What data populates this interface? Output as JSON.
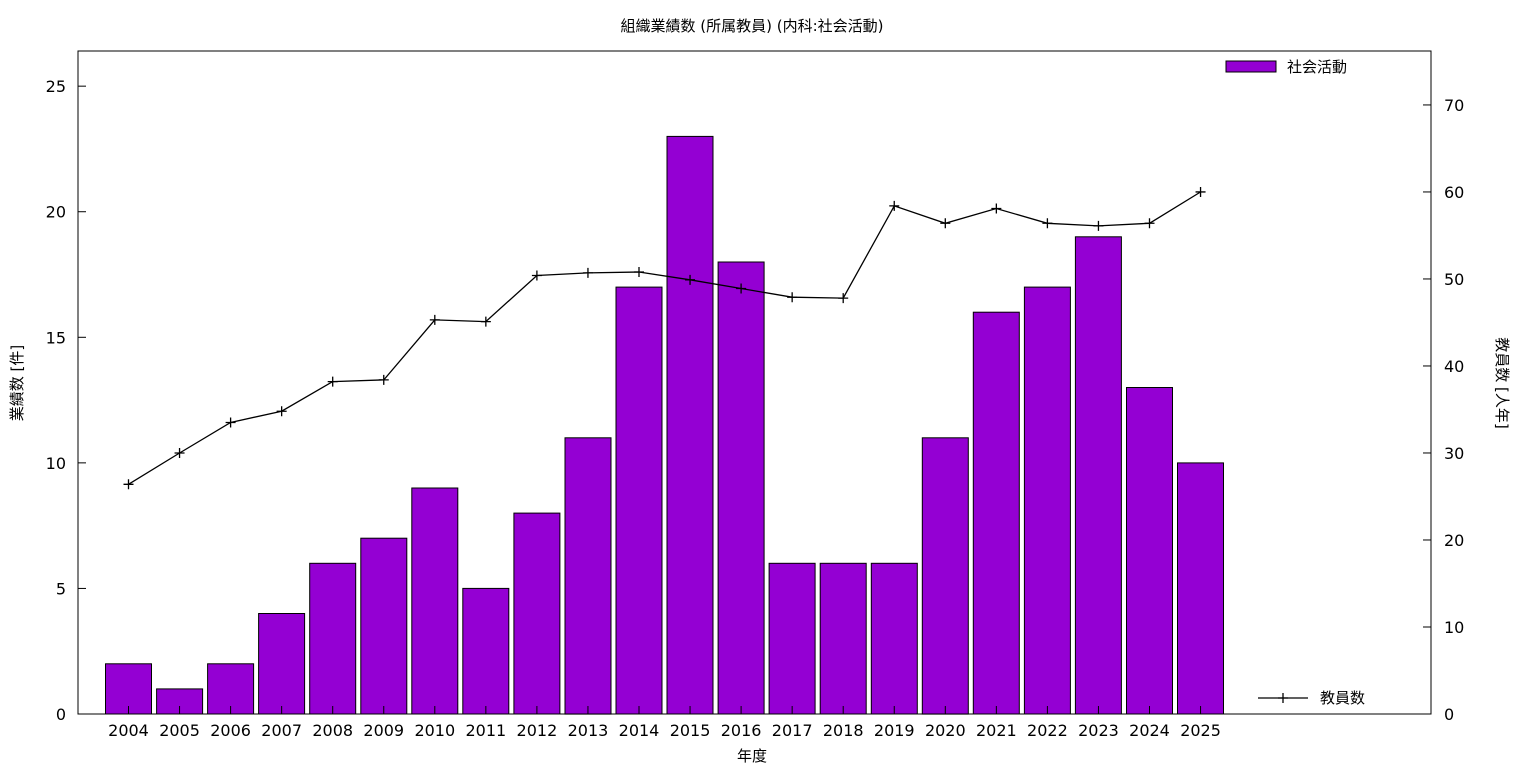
{
  "chart_data": {
    "type": "bar",
    "title": "組織業績数 (所属教員) (内科:社会活動)",
    "xlabel": "年度",
    "ylabel": "業績数 [件]",
    "y2label": "教員数 [人年]",
    "categories": [
      "2004",
      "2005",
      "2006",
      "2007",
      "2008",
      "2009",
      "2010",
      "2011",
      "2012",
      "2013",
      "2014",
      "2015",
      "2016",
      "2017",
      "2018",
      "2019",
      "2020",
      "2021",
      "2022",
      "2023",
      "2024",
      "2025"
    ],
    "series": [
      {
        "name": "社会活動",
        "type": "bar",
        "axis": "left",
        "color": "#9400d3",
        "values": [
          2,
          1,
          2,
          4,
          6,
          7,
          9,
          5,
          8,
          11,
          17,
          23,
          18,
          6,
          6,
          6,
          11,
          16,
          17,
          19,
          13,
          10
        ]
      },
      {
        "name": "教員数",
        "type": "line",
        "axis": "right",
        "color": "#000000",
        "values": [
          26.4,
          30,
          33.5,
          34.8,
          38.2,
          38.4,
          45.3,
          45.1,
          50.4,
          50.7,
          50.8,
          49.9,
          48.9,
          47.9,
          47.8,
          58.4,
          56.4,
          58.1,
          56.4,
          56.1,
          56.4,
          60.0
        ]
      }
    ],
    "ylim": [
      0,
      26.4
    ],
    "yticks": [
      0,
      5,
      10,
      15,
      20,
      25
    ],
    "y2lim": [
      0,
      76.2
    ],
    "y2ticks": [
      0,
      10,
      20,
      30,
      40,
      50,
      60,
      70
    ],
    "grid": false,
    "legend": "top-right (bars), bottom-right (line)"
  }
}
